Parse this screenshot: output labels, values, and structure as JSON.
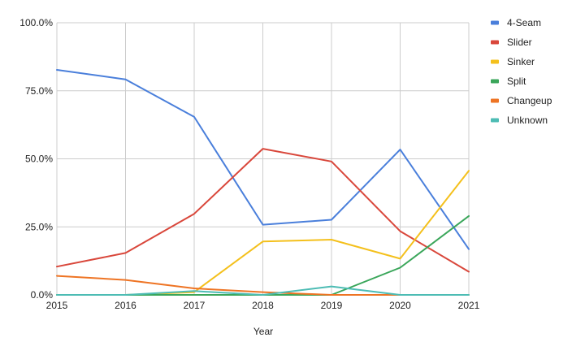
{
  "chart_data": {
    "type": "line",
    "title": "",
    "xlabel": "Year",
    "ylabel": "",
    "categories": [
      "2015",
      "2016",
      "2017",
      "2018",
      "2019",
      "2020",
      "2021"
    ],
    "y_ticks": [
      "0.0%",
      "25.0%",
      "50.0%",
      "75.0%",
      "100.0%"
    ],
    "ylim": [
      0,
      100
    ],
    "y_unit": "percent",
    "grid": true,
    "legend_position": "right",
    "series": [
      {
        "name": "4-Seam",
        "color": "#4a7fdb",
        "values": [
          82.7,
          79.2,
          65.4,
          25.8,
          27.6,
          53.4,
          16.8
        ]
      },
      {
        "name": "Slider",
        "color": "#d9473b",
        "values": [
          10.4,
          15.4,
          29.8,
          53.7,
          49.0,
          23.4,
          8.5
        ]
      },
      {
        "name": "Sinker",
        "color": "#f4c01c",
        "values": [
          0.0,
          0.0,
          1.0,
          19.6,
          20.3,
          13.3,
          45.6
        ]
      },
      {
        "name": "Split",
        "color": "#3aa65a",
        "values": [
          0.0,
          0.0,
          0.0,
          0.0,
          0.0,
          10.0,
          29.0
        ]
      },
      {
        "name": "Changeup",
        "color": "#ee7424",
        "values": [
          7.0,
          5.5,
          2.4,
          1.0,
          0.0,
          0.0,
          0.0
        ]
      },
      {
        "name": "Unknown",
        "color": "#4dbcb4",
        "values": [
          0.0,
          0.0,
          1.4,
          0.0,
          3.1,
          0.0,
          0.0
        ]
      }
    ]
  }
}
